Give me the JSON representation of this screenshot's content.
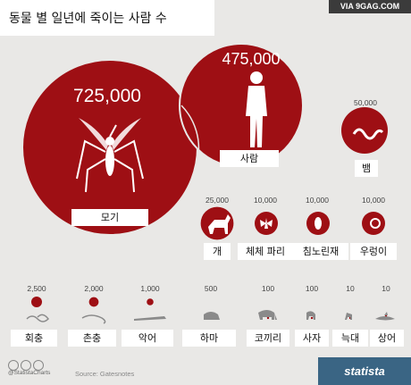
{
  "title": "동물 별 일년에 죽이는 사람 수",
  "watermark": "VIA 9GAG.COM",
  "source": "Source: Gatesnotes",
  "handle": "@StatistaCharts",
  "brand": "statista",
  "colors": {
    "circle": "#9e0f14",
    "bg": "#e9e8e6",
    "brand_bar": "#3a6584"
  },
  "chart_data": {
    "type": "bubble",
    "title": "동물 별 일년에 죽이는 사람 수",
    "items": [
      {
        "label": "모기",
        "value": 725000,
        "value_text": "725,000",
        "icon": "mosquito-icon"
      },
      {
        "label": "사람",
        "value": 475000,
        "value_text": "475,000",
        "icon": "human-icon"
      },
      {
        "label": "뱀",
        "value": 50000,
        "value_text": "50,000",
        "icon": "snake-icon"
      },
      {
        "label": "개",
        "value": 25000,
        "value_text": "25,000",
        "icon": "dog-icon"
      },
      {
        "label": "체체 파리",
        "value": 10000,
        "value_text": "10,000",
        "icon": "tsetse-fly-icon"
      },
      {
        "label": "침노린재",
        "value": 10000,
        "value_text": "10,000",
        "icon": "assassin-bug-icon"
      },
      {
        "label": "우렁이",
        "value": 10000,
        "value_text": "10,000",
        "icon": "snail-icon"
      },
      {
        "label": "회충",
        "value": 2500,
        "value_text": "2,500",
        "icon": "roundworm-icon"
      },
      {
        "label": "촌충",
        "value": 2000,
        "value_text": "2,000",
        "icon": "tapeworm-icon"
      },
      {
        "label": "악어",
        "value": 1000,
        "value_text": "1,000",
        "icon": "crocodile-icon"
      },
      {
        "label": "하마",
        "value": 500,
        "value_text": "500",
        "icon": "hippo-icon"
      },
      {
        "label": "코끼리",
        "value": 100,
        "value_text": "100",
        "icon": "elephant-icon"
      },
      {
        "label": "사자",
        "value": 100,
        "value_text": "100",
        "icon": "lion-icon"
      },
      {
        "label": "늑대",
        "value": 10,
        "value_text": "10",
        "icon": "wolf-icon"
      },
      {
        "label": "상어",
        "value": 10,
        "value_text": "10",
        "icon": "shark-icon"
      }
    ]
  }
}
